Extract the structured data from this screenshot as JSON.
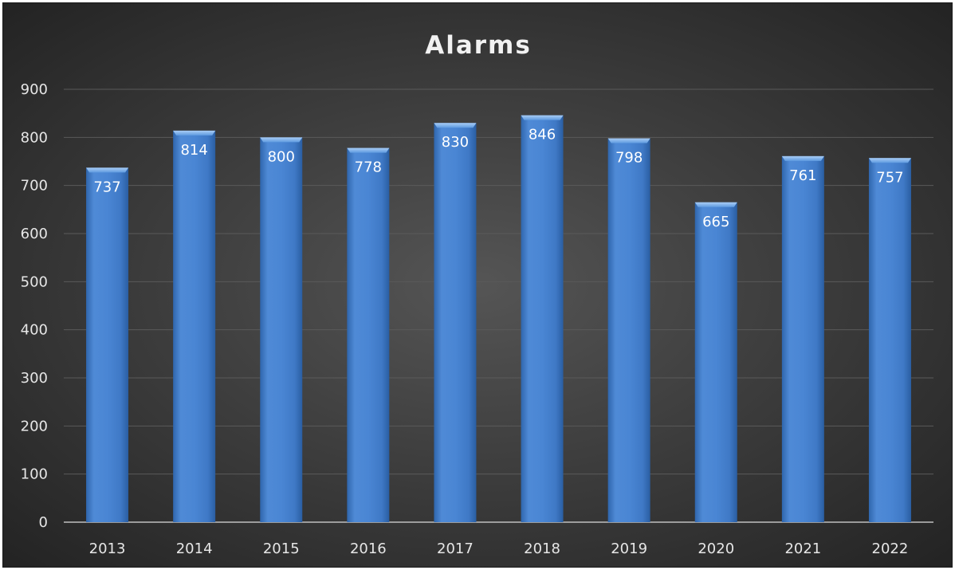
{
  "chart_data": {
    "type": "bar",
    "title": "Alarms",
    "xlabel": "",
    "ylabel": "",
    "categories": [
      "2013",
      "2014",
      "2015",
      "2016",
      "2017",
      "2018",
      "2019",
      "2020",
      "2021",
      "2022"
    ],
    "values": [
      737,
      814,
      800,
      778,
      830,
      846,
      798,
      665,
      761,
      757
    ],
    "ylim": [
      0,
      900
    ],
    "yticks": [
      0,
      100,
      200,
      300,
      400,
      500,
      600,
      700,
      800,
      900
    ],
    "grid": true,
    "legend": "none",
    "colors": {
      "bar": "#4a86d4",
      "bar_light": "#6aa3e8",
      "bar_dark": "#2f66ad",
      "background": "#3a3a3a",
      "grid": "#5a5a5a",
      "text": "#e6e6e6"
    }
  }
}
